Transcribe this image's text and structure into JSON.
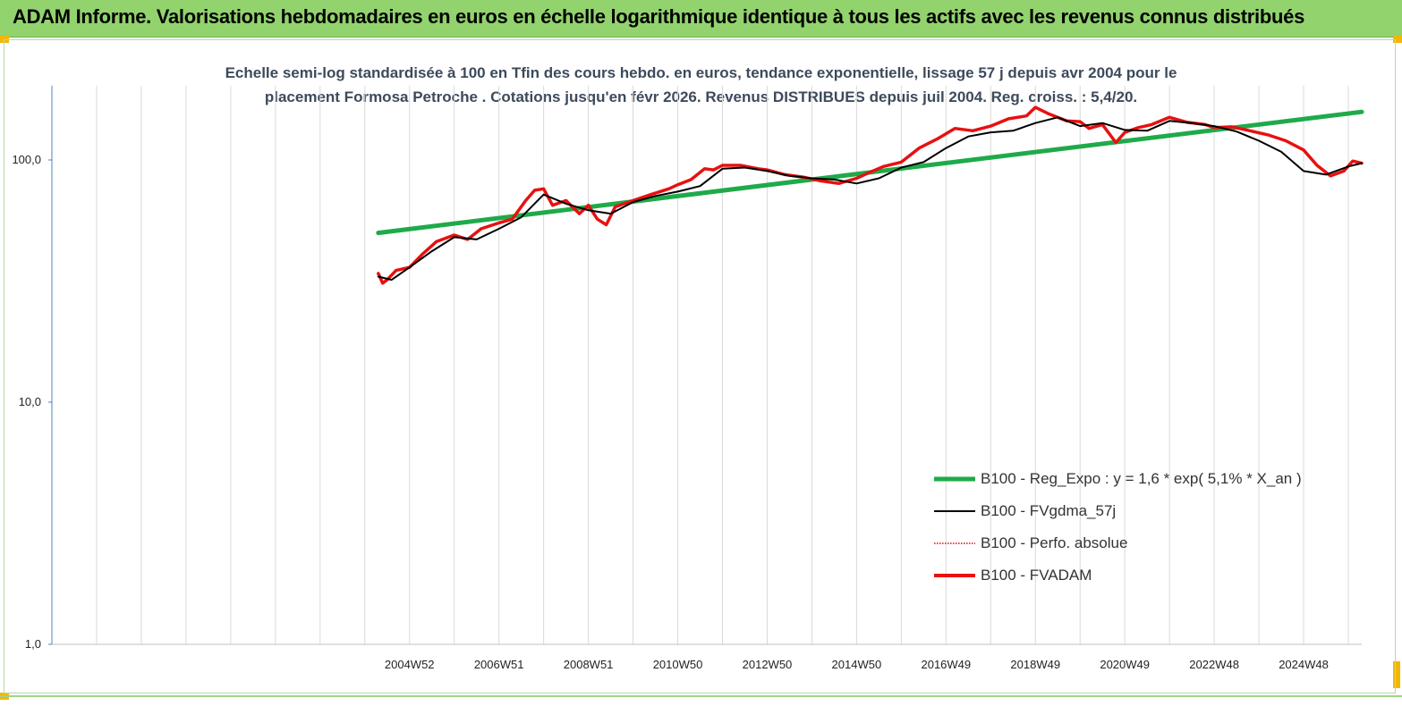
{
  "banner": {
    "title": "ADAM Informe. Valorisations hebdomadaires en euros en échelle logarithmique identique à tous les actifs avec les revenus connus distribués"
  },
  "colors": {
    "banner_bg": "#92d36e",
    "reg_expo": "#1faa4a",
    "fvgdma": "#000000",
    "perfo": "#e00000",
    "fvadam": "#e81010",
    "corner": "#f2b705"
  },
  "chart_data": {
    "type": "line",
    "title_line1": "Echelle semi-log standardisée à 100 en Tfin des cours hebdo. en euros, tendance exponentielle, lissage 57 j depuis avr 2004 pour le",
    "title_line2": "placement Formosa Petroche . Cotations jusqu'en févr 2026. Revenus DISTRIBUES depuis juil 2004. Reg. croiss. : 5,4/20.",
    "y_scale": "log",
    "ylim": [
      1,
      180
    ],
    "y_ticks": [
      {
        "value": 1,
        "label": "1,0"
      },
      {
        "value": 10,
        "label": "10,0"
      },
      {
        "value": 100,
        "label": "100,0"
      }
    ],
    "xlim": [
      1997.0,
      2026.3
    ],
    "x_ticks": [
      {
        "value": 2005.0,
        "label": "2004W52"
      },
      {
        "value": 2007.0,
        "label": "2006W51"
      },
      {
        "value": 2009.0,
        "label": "2008W51"
      },
      {
        "value": 2011.0,
        "label": "2010W50"
      },
      {
        "value": 2013.0,
        "label": "2012W50"
      },
      {
        "value": 2015.0,
        "label": "2014W50"
      },
      {
        "value": 2017.0,
        "label": "2016W49"
      },
      {
        "value": 2019.0,
        "label": "2018W49"
      },
      {
        "value": 2021.0,
        "label": "2020W49"
      },
      {
        "value": 2023.0,
        "label": "2022W48"
      },
      {
        "value": 2025.0,
        "label": "2024W48"
      }
    ],
    "grid": "vertical",
    "legend_position": "bottom-right",
    "series": [
      {
        "name": "B100 - Reg_Expo : y = 1,6 *  exp( 5,1% *  X_an )",
        "style": "solid-thick",
        "x": [
          2004.3,
          2026.3
        ],
        "values": [
          50,
          158
        ]
      },
      {
        "name": "B100 - FVgdma_57j",
        "style": "solid-thin",
        "x": [
          2004.3,
          2004.6,
          2005.0,
          2005.5,
          2006.0,
          2006.5,
          2007.0,
          2007.5,
          2008.0,
          2008.5,
          2009.0,
          2009.5,
          2010.0,
          2010.5,
          2011.0,
          2011.5,
          2012.0,
          2012.5,
          2013.0,
          2013.5,
          2014.0,
          2014.5,
          2015.0,
          2015.5,
          2016.0,
          2016.5,
          2017.0,
          2017.5,
          2018.0,
          2018.5,
          2019.0,
          2019.5,
          2020.0,
          2020.5,
          2021.0,
          2021.5,
          2022.0,
          2022.5,
          2023.0,
          2023.5,
          2024.0,
          2024.5,
          2025.0,
          2025.5,
          2026.0,
          2026.3
        ],
        "values": [
          33,
          32,
          36,
          42,
          48,
          47,
          52,
          58,
          72,
          66,
          62,
          60,
          67,
          71,
          74,
          78,
          92,
          93,
          90,
          86,
          84,
          83,
          80,
          84,
          93,
          98,
          112,
          125,
          130,
          132,
          142,
          150,
          138,
          142,
          133,
          132,
          145,
          142,
          138,
          131,
          120,
          108,
          90,
          87,
          94,
          97
        ]
      },
      {
        "name": "B100 - Perfo. absolue",
        "style": "dotted",
        "x": [],
        "values": []
      },
      {
        "name": "B100 - FVADAM",
        "style": "solid-thick",
        "x": [
          2004.3,
          2004.4,
          2004.5,
          2004.7,
          2005.0,
          2005.3,
          2005.6,
          2006.0,
          2006.3,
          2006.6,
          2007.0,
          2007.3,
          2007.6,
          2007.8,
          2008.0,
          2008.2,
          2008.5,
          2008.8,
          2009.0,
          2009.2,
          2009.4,
          2009.6,
          2010.0,
          2010.4,
          2010.8,
          2011.0,
          2011.3,
          2011.6,
          2011.8,
          2012.0,
          2012.4,
          2012.8,
          2013.0,
          2013.4,
          2013.8,
          2014.2,
          2014.6,
          2015.0,
          2015.3,
          2015.6,
          2016.0,
          2016.4,
          2016.8,
          2017.2,
          2017.6,
          2018.0,
          2018.4,
          2018.8,
          2019.0,
          2019.3,
          2019.7,
          2020.0,
          2020.2,
          2020.5,
          2020.8,
          2021.0,
          2021.3,
          2021.6,
          2022.0,
          2022.4,
          2022.8,
          2023.0,
          2023.4,
          2023.8,
          2024.2,
          2024.6,
          2025.0,
          2025.3,
          2025.6,
          2025.9,
          2026.1,
          2026.3
        ],
        "values": [
          34,
          31,
          32,
          35,
          36,
          41,
          46,
          49,
          47,
          52,
          55,
          57,
          68,
          75,
          76,
          65,
          68,
          60,
          65,
          57,
          54,
          64,
          68,
          72,
          76,
          79,
          83,
          92,
          91,
          95,
          95,
          92,
          91,
          87,
          85,
          82,
          80,
          84,
          89,
          94,
          98,
          112,
          122,
          135,
          132,
          138,
          148,
          152,
          165,
          155,
          145,
          144,
          135,
          140,
          118,
          130,
          136,
          140,
          150,
          143,
          140,
          136,
          137,
          132,
          127,
          120,
          110,
          95,
          86,
          90,
          99,
          97
        ]
      }
    ]
  }
}
